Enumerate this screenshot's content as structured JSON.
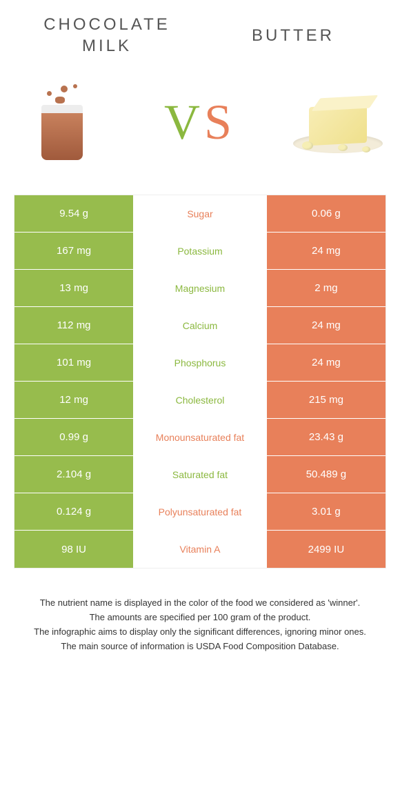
{
  "header": {
    "left_title_line1": "CHOCOLATE",
    "left_title_line2": "MILK",
    "right_title": "BUTTER",
    "vs_v": "V",
    "vs_s": "S"
  },
  "colors": {
    "green": "#97bc4d",
    "green_text": "#8bb83f",
    "orange": "#e8805a",
    "background": "#ffffff"
  },
  "rows": [
    {
      "left": "9.54 g",
      "label": "Sugar",
      "right": "0.06 g",
      "winner": "orange"
    },
    {
      "left": "167 mg",
      "label": "Potassium",
      "right": "24 mg",
      "winner": "green"
    },
    {
      "left": "13 mg",
      "label": "Magnesium",
      "right": "2 mg",
      "winner": "green"
    },
    {
      "left": "112 mg",
      "label": "Calcium",
      "right": "24 mg",
      "winner": "green"
    },
    {
      "left": "101 mg",
      "label": "Phosphorus",
      "right": "24 mg",
      "winner": "green"
    },
    {
      "left": "12 mg",
      "label": "Cholesterol",
      "right": "215 mg",
      "winner": "green"
    },
    {
      "left": "0.99 g",
      "label": "Monounsaturated fat",
      "right": "23.43 g",
      "winner": "orange"
    },
    {
      "left": "2.104 g",
      "label": "Saturated fat",
      "right": "50.489 g",
      "winner": "green"
    },
    {
      "left": "0.124 g",
      "label": "Polyunsaturated fat",
      "right": "3.01 g",
      "winner": "orange"
    },
    {
      "left": "98 IU",
      "label": "Vitamin A",
      "right": "2499 IU",
      "winner": "orange"
    }
  ],
  "footnotes": {
    "line1": "The nutrient name is displayed in the color of the food we considered as 'winner'.",
    "line2": "The amounts are specified per 100 gram of the product.",
    "line3": "The infographic aims to display only the significant differences, ignoring minor ones.",
    "line4": "The main source of information is USDA Food Composition Database."
  }
}
